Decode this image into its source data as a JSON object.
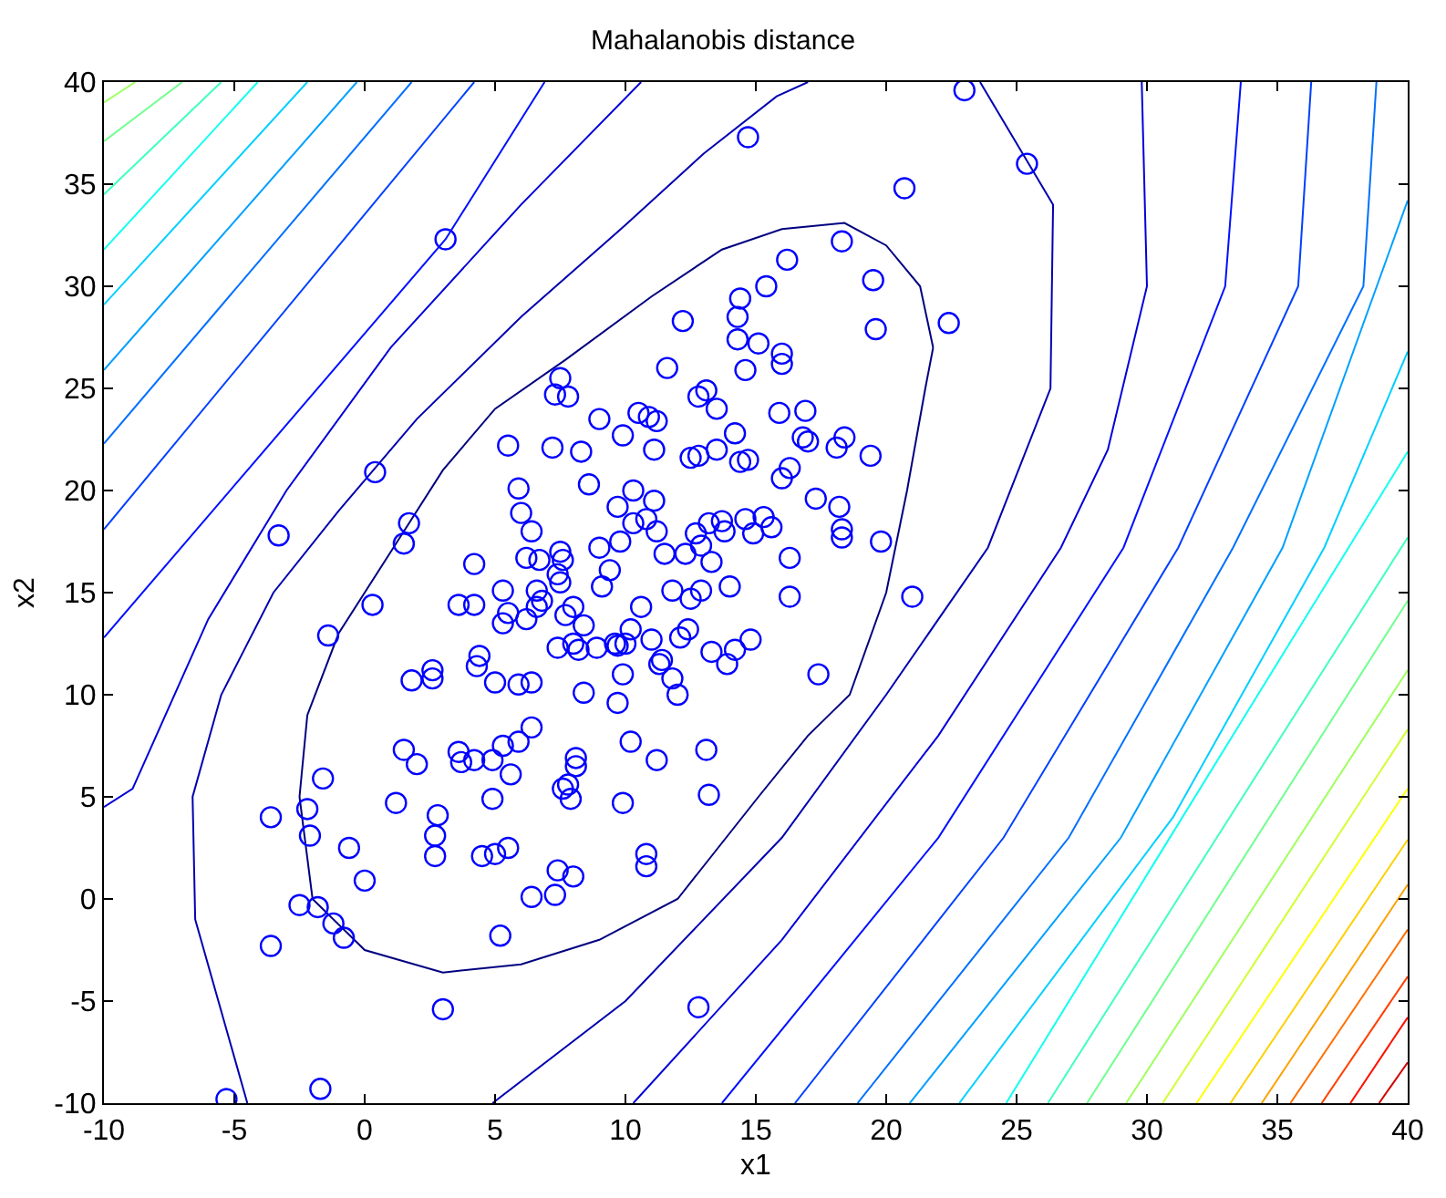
{
  "chart_data": {
    "type": "scatter",
    "title": "Mahalanobis distance",
    "xlabel": "x1",
    "ylabel": "x2",
    "xlim": [
      -10,
      40
    ],
    "ylim": [
      -10,
      40
    ],
    "xticks": [
      -10,
      -5,
      0,
      5,
      10,
      15,
      20,
      25,
      30,
      35,
      40
    ],
    "yticks": [
      -10,
      -5,
      0,
      5,
      10,
      15,
      20,
      25,
      30,
      35,
      40
    ],
    "marker": "circle",
    "series": [
      {
        "type": "line",
        "marker": "none",
        "color": "#000080",
        "x": [
          -2.5,
          -2,
          0,
          3,
          6,
          9,
          12,
          15.1,
          17,
          18.6,
          20,
          20.8,
          21.5,
          21.8,
          null,
          -2.5,
          -2.2,
          -1,
          1,
          3,
          5,
          7.7,
          11,
          13.7,
          16,
          18.4,
          20,
          21.3,
          21.8
        ],
        "values": [
          5,
          0,
          -2.5,
          -3.6,
          -3.2,
          -2,
          0,
          5,
          8,
          10,
          15,
          20,
          25,
          27,
          null,
          5,
          9,
          13,
          17,
          21,
          24,
          26.4,
          29.5,
          31.8,
          32.8,
          33.1,
          32,
          30,
          27
        ]
      },
      {
        "type": "line",
        "marker": "none",
        "color": "#0000b0",
        "x": [
          -4.5,
          -6.5,
          -6.6,
          -5.5,
          -3.5,
          -1,
          2,
          6,
          10,
          13,
          15.8,
          17,
          null,
          23.6,
          26.4,
          26.3,
          23.9,
          20,
          16,
          10,
          4.9
        ],
        "values": [
          -10,
          -1,
          5,
          10,
          15,
          19,
          23.5,
          28.5,
          33,
          36.5,
          39.3,
          40,
          null,
          40,
          34,
          25,
          17.2,
          10,
          3,
          -5,
          -10
        ]
      },
      {
        "type": "line",
        "marker": "none",
        "color": "#0000d8",
        "x": [
          -10,
          -8.9,
          -6,
          -3,
          1,
          6,
          10.6,
          null,
          10.3,
          16,
          22,
          26.7,
          28.5,
          30,
          29.8
        ],
        "values": [
          4.5,
          5.4,
          13.7,
          20,
          27,
          34,
          40,
          null,
          -10,
          -2,
          8,
          17.2,
          22,
          30,
          40
        ]
      },
      {
        "type": "line",
        "marker": "none",
        "color": "#0010ff",
        "x": [
          -10,
          3.1,
          6.9,
          null,
          13.7,
          22,
          29.1,
          33,
          33.6
        ],
        "values": [
          12.8,
          32.3,
          40,
          null,
          -10,
          3,
          17.2,
          30,
          40
        ]
      },
      {
        "type": "line",
        "marker": "none",
        "color": "#0040ff",
        "x": [
          -10,
          4.2,
          null,
          16.5,
          24.5,
          31.2,
          35.8,
          36.3
        ],
        "values": [
          18.1,
          40,
          null,
          -10,
          3,
          17.2,
          30,
          40
        ]
      },
      {
        "type": "line",
        "marker": "none",
        "color": "#0070ff",
        "x": [
          -10,
          1.8,
          null,
          18.9,
          27,
          33.3,
          38.3,
          38.8
        ],
        "values": [
          22.3,
          40,
          null,
          -10,
          3,
          17.2,
          30,
          40
        ]
      },
      {
        "type": "line",
        "marker": "none",
        "color": "#00a0ff",
        "x": [
          -10,
          -0.3,
          null,
          20.9,
          29,
          35.2,
          40
        ],
        "values": [
          25.9,
          40,
          null,
          -10,
          3,
          17.2,
          34.2
        ]
      },
      {
        "type": "line",
        "marker": "none",
        "color": "#00d0ff",
        "x": [
          -10,
          -2.2,
          null,
          22.8,
          31,
          36.8,
          40
        ],
        "values": [
          29.1,
          40,
          null,
          -10,
          4,
          17.2,
          26.8
        ]
      },
      {
        "type": "line",
        "marker": "none",
        "color": "#10ffef",
        "x": [
          -10,
          -4.1,
          null,
          24.6,
          40
        ],
        "values": [
          31.8,
          40,
          null,
          -10,
          21.9
        ]
      },
      {
        "type": "line",
        "marker": "none",
        "color": "#40ffbf",
        "x": [
          -10,
          -5.5,
          null,
          26.2,
          40
        ],
        "values": [
          34.5,
          40,
          null,
          -10,
          17.7
        ]
      },
      {
        "type": "line",
        "marker": "none",
        "color": "#70ff8f",
        "x": [
          -10,
          -7,
          null,
          27.7,
          40
        ],
        "values": [
          37.1,
          40,
          null,
          -10,
          14.6
        ]
      },
      {
        "type": "line",
        "marker": "none",
        "color": "#a0ff60",
        "x": [
          -10,
          -8.8,
          null,
          29.2,
          40
        ],
        "values": [
          39,
          40,
          null,
          -10,
          11.2
        ]
      },
      {
        "type": "line",
        "marker": "none",
        "color": "#d0ff30",
        "x": [
          30.6,
          40
        ],
        "values": [
          -10,
          8.3
        ]
      },
      {
        "type": "line",
        "marker": "none",
        "color": "#ffff00",
        "x": [
          31.9,
          40
        ],
        "values": [
          -10,
          5.4
        ]
      },
      {
        "type": "line",
        "marker": "none",
        "color": "#ffd000",
        "x": [
          33.2,
          40
        ],
        "values": [
          -10,
          2.9
        ]
      },
      {
        "type": "line",
        "marker": "none",
        "color": "#ffa000",
        "x": [
          34.4,
          40
        ],
        "values": [
          -10,
          0.7
        ]
      },
      {
        "type": "line",
        "marker": "none",
        "color": "#ff7000",
        "x": [
          35.5,
          40
        ],
        "values": [
          -10,
          -1.5
        ]
      },
      {
        "type": "line",
        "marker": "none",
        "color": "#ff4000",
        "x": [
          36.7,
          40
        ],
        "values": [
          -10,
          -3.8
        ]
      },
      {
        "type": "line",
        "marker": "none",
        "color": "#ff1000",
        "x": [
          37.8,
          40
        ],
        "values": [
          -10,
          -5.8
        ]
      },
      {
        "type": "line",
        "marker": "none",
        "color": "#d00000",
        "x": [
          38.9,
          40
        ],
        "values": [
          -10,
          -8
        ]
      },
      {
        "color": "#0000ff",
        "x": [
          -5.3,
          -1.7,
          3,
          12.8,
          -3.6,
          -0.8,
          -1.2,
          -2.5,
          -1.8,
          0,
          -0.6,
          -2.1,
          -2.2,
          -3.6,
          -1.6,
          5.2,
          7.3,
          6.4,
          7.4,
          8,
          5,
          5.5,
          4.5,
          2.7,
          2.8,
          2.7,
          4.9,
          5.6,
          4.9,
          4.2,
          3.7,
          3.6,
          1.5,
          2,
          1.2,
          5.3,
          5.9,
          6.4,
          7.6,
          7.8,
          7.9,
          8.1,
          8.1,
          9.9,
          10.2,
          11.2,
          12,
          13.1,
          13.2,
          10.8,
          10.8,
          17.4,
          12.1,
          11,
          10.6,
          10,
          9.7,
          8,
          8.2,
          8.4,
          9.9,
          9.7,
          11.4,
          11.3,
          11.8,
          13.3,
          14.2,
          14.8,
          14,
          13.8,
          13.2,
          13.7,
          14.6,
          15.6,
          15.3,
          16,
          16.3,
          16.3,
          16.3,
          17.3,
          18.2,
          18.3,
          18.3,
          19.8,
          18.1,
          18.4,
          17,
          16.9,
          16.8,
          19.4,
          21,
          19.5,
          19.6,
          18.3,
          16,
          16,
          15.9,
          15.4,
          16.2,
          14.4,
          14.3,
          14.6,
          15.1,
          14.3,
          13.1,
          12.8,
          13.5,
          11.6,
          12.2,
          12.5,
          12.8,
          13.5,
          14.2,
          14.4,
          14.7,
          14.9,
          12.7,
          12.9,
          13.3,
          12.9,
          12.5,
          12.4,
          11.8,
          12.3,
          11.5,
          11.2,
          11.1,
          10.8,
          11.1,
          10.5,
          10.9,
          11.2,
          9.9,
          8.6,
          9.7,
          10.3,
          10.3,
          9.8,
          9,
          9.4,
          9.1,
          7.4,
          7.6,
          7.5,
          7.5,
          6.2,
          6.7,
          6.4,
          6,
          5.9,
          5.5,
          7.2,
          8.3,
          7.5,
          7.3,
          7.8,
          9,
          4.2,
          3.6,
          4.2,
          4.3,
          4.4,
          5.3,
          5.3,
          5.5,
          6.2,
          6.6,
          6.4,
          6.8,
          6.6,
          7.4,
          7.7,
          8,
          8.4,
          8.9,
          5,
          5.9,
          2.6,
          2.6,
          1.8,
          1.5,
          1.7,
          0.4,
          -3.3,
          -1.4,
          0.3,
          3.1,
          14.7,
          20.7,
          22.4,
          23,
          25.4,
          13.9,
          9.6,
          10.2
        ],
        "values": [
          -9.8,
          -9.3,
          -5.4,
          -5.3,
          -2.3,
          -1.9,
          -1.2,
          -0.3,
          -0.4,
          0.9,
          2.5,
          3.1,
          4.4,
          4,
          5.9,
          -1.8,
          0.2,
          0.1,
          1.4,
          1.1,
          2.2,
          2.5,
          2.1,
          2.1,
          4.1,
          3.1,
          4.9,
          6.1,
          6.8,
          6.8,
          6.7,
          7.2,
          7.3,
          6.6,
          4.7,
          7.5,
          7.7,
          8.4,
          5.4,
          5.6,
          4.9,
          6.5,
          6.9,
          4.7,
          7.7,
          6.8,
          10,
          7.3,
          5.1,
          2.2,
          1.6,
          11,
          12.8,
          12.7,
          14.3,
          12.5,
          12.4,
          12.5,
          12.2,
          10.1,
          11,
          9.6,
          11.7,
          11.5,
          10.8,
          12.1,
          12.2,
          12.7,
          15.3,
          18,
          18.4,
          18.5,
          18.6,
          18.2,
          18.7,
          20.6,
          21.1,
          16.7,
          14.8,
          19.6,
          19.2,
          18.1,
          17.7,
          17.5,
          22.1,
          22.6,
          22.4,
          23.9,
          22.6,
          21.7,
          14.8,
          30.3,
          27.9,
          32.2,
          26.7,
          26.2,
          23.8,
          30,
          31.3,
          29.4,
          27.4,
          25.9,
          27.2,
          28.5,
          24.9,
          24.6,
          24,
          26,
          28.3,
          21.6,
          21.7,
          22,
          22.8,
          21.4,
          21.5,
          17.9,
          17.9,
          17.3,
          16.5,
          15.1,
          14.7,
          13.2,
          15.1,
          16.9,
          16.9,
          18,
          19.5,
          18.6,
          22,
          23.8,
          23.6,
          23.4,
          22.7,
          20.3,
          19.2,
          18.4,
          20,
          17.5,
          17.2,
          16.1,
          15.3,
          15.9,
          16.6,
          17,
          15.5,
          16.7,
          16.6,
          18,
          18.9,
          20.1,
          22.2,
          22.1,
          21.9,
          25.5,
          24.7,
          24.6,
          23.5,
          16.4,
          14.4,
          14.4,
          11.4,
          11.9,
          13.5,
          15.1,
          14,
          13.7,
          14.3,
          10.6,
          14.6,
          15.1,
          12.3,
          13.9,
          14.3,
          13.4,
          12.3,
          10.6,
          10.5,
          10.8,
          11.2,
          10.7,
          17.4,
          18.4,
          20.9,
          17.8,
          12.9,
          14.4,
          32.3,
          37.3,
          34.8,
          28.2,
          39.6,
          36,
          11.5,
          12.5,
          13.2
        ]
      }
    ]
  }
}
